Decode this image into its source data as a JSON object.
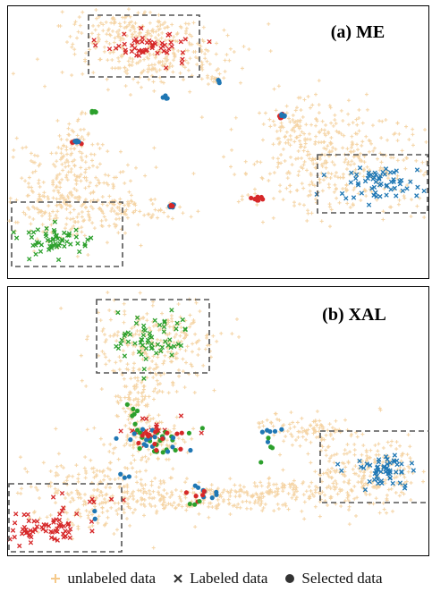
{
  "legend": {
    "unlabeled": "unlabeled data",
    "labeled": "Labeled data",
    "selected": "Selected data"
  },
  "colors": {
    "unlabeled": "#f5d3a3",
    "red": "#d62728",
    "green": "#2ca02c",
    "blue": "#1f77b4",
    "box": "#555555",
    "frame": "#000000"
  },
  "chart_data": [
    {
      "type": "scatter",
      "title": "(a) ME",
      "note": "t-SNE style embedding; axes unlabeled",
      "series": [
        {
          "name": "unlabeled data",
          "marker": "plus",
          "color": "#f5d3a3",
          "clusters": [
            {
              "cx": 0.35,
              "cy": 0.17,
              "sx": 0.1,
              "sy": 0.06,
              "n": 260
            },
            {
              "cx": 0.28,
              "cy": 0.06,
              "sx": 0.08,
              "sy": 0.03,
              "n": 110
            },
            {
              "cx": 0.13,
              "cy": 0.69,
              "sx": 0.09,
              "sy": 0.1,
              "n": 280
            },
            {
              "cx": 0.26,
              "cy": 0.76,
              "sx": 0.08,
              "sy": 0.03,
              "n": 90
            },
            {
              "cx": 0.14,
              "cy": 0.52,
              "sx": 0.025,
              "sy": 0.07,
              "n": 60
            },
            {
              "cx": 0.8,
              "cy": 0.58,
              "sx": 0.12,
              "sy": 0.1,
              "n": 360
            },
            {
              "cx": 0.7,
              "cy": 0.45,
              "sx": 0.05,
              "sy": 0.05,
              "n": 100
            },
            {
              "cx": 0.49,
              "cy": 0.26,
              "sx": 0.012,
              "sy": 0.008,
              "n": 14
            }
          ]
        },
        {
          "name": "Labeled data",
          "marker": "x",
          "clusters": [
            {
              "cx": 0.33,
              "cy": 0.13,
              "sx": 0.05,
              "sy": 0.03,
              "n": 55,
              "color": "#d62728"
            },
            {
              "cx": 0.1,
              "cy": 0.87,
              "sx": 0.04,
              "sy": 0.03,
              "n": 55,
              "color": "#2ca02c"
            },
            {
              "cx": 0.89,
              "cy": 0.66,
              "sx": 0.05,
              "sy": 0.03,
              "n": 60,
              "color": "#1f77b4"
            }
          ]
        },
        {
          "name": "Selected data",
          "marker": "dot",
          "clusters": [
            {
              "cx": 0.155,
              "cy": 0.5,
              "sx": 0.006,
              "sy": 0.005,
              "n": 10,
              "color": "#d62728"
            },
            {
              "cx": 0.155,
              "cy": 0.5,
              "sx": 0.004,
              "sy": 0.004,
              "n": 4,
              "color": "#1f77b4"
            },
            {
              "cx": 0.655,
              "cy": 0.4,
              "sx": 0.007,
              "sy": 0.005,
              "n": 10,
              "color": "#d62728"
            },
            {
              "cx": 0.655,
              "cy": 0.4,
              "sx": 0.005,
              "sy": 0.004,
              "n": 5,
              "color": "#1f77b4"
            },
            {
              "cx": 0.595,
              "cy": 0.72,
              "sx": 0.006,
              "sy": 0.005,
              "n": 8,
              "color": "#d62728"
            },
            {
              "cx": 0.385,
              "cy": 0.74,
              "sx": 0.005,
              "sy": 0.006,
              "n": 6,
              "color": "#1f77b4"
            },
            {
              "cx": 0.385,
              "cy": 0.74,
              "sx": 0.004,
              "sy": 0.005,
              "n": 3,
              "color": "#d62728"
            },
            {
              "cx": 0.19,
              "cy": 0.38,
              "sx": 0.006,
              "sy": 0.005,
              "n": 6,
              "color": "#2ca02c"
            },
            {
              "cx": 0.375,
              "cy": 0.33,
              "sx": 0.004,
              "sy": 0.004,
              "n": 4,
              "color": "#1f77b4"
            },
            {
              "cx": 0.5,
              "cy": 0.27,
              "sx": 0.004,
              "sy": 0.004,
              "n": 3,
              "color": "#1f77b4"
            }
          ]
        }
      ]
    },
    {
      "type": "scatter",
      "title": "(b) XAL",
      "note": "t-SNE style embedding; axes unlabeled",
      "series": [
        {
          "name": "unlabeled data",
          "marker": "plus",
          "color": "#f5d3a3",
          "clusters": [
            {
              "cx": 0.35,
              "cy": 0.2,
              "sx": 0.07,
              "sy": 0.09,
              "n": 260
            },
            {
              "cx": 0.3,
              "cy": 0.4,
              "sx": 0.03,
              "sy": 0.06,
              "n": 80
            },
            {
              "cx": 0.33,
              "cy": 0.57,
              "sx": 0.04,
              "sy": 0.05,
              "n": 120
            },
            {
              "cx": 0.2,
              "cy": 0.77,
              "sx": 0.09,
              "sy": 0.08,
              "n": 230
            },
            {
              "cx": 0.4,
              "cy": 0.8,
              "sx": 0.12,
              "sy": 0.03,
              "n": 170
            },
            {
              "cx": 0.65,
              "cy": 0.78,
              "sx": 0.08,
              "sy": 0.03,
              "n": 120
            },
            {
              "cx": 0.85,
              "cy": 0.7,
              "sx": 0.07,
              "sy": 0.08,
              "n": 260
            },
            {
              "cx": 0.72,
              "cy": 0.53,
              "sx": 0.06,
              "sy": 0.025,
              "n": 90
            }
          ]
        },
        {
          "name": "Labeled data",
          "marker": "x",
          "clusters": [
            {
              "cx": 0.34,
              "cy": 0.17,
              "sx": 0.05,
              "sy": 0.05,
              "n": 60,
              "color": "#2ca02c"
            },
            {
              "cx": 0.08,
              "cy": 0.91,
              "sx": 0.05,
              "sy": 0.035,
              "n": 65,
              "color": "#d62728"
            },
            {
              "cx": 0.9,
              "cy": 0.7,
              "sx": 0.04,
              "sy": 0.03,
              "n": 55,
              "color": "#1f77b4"
            },
            {
              "cx": 0.34,
              "cy": 0.53,
              "sx": 0.04,
              "sy": 0.025,
              "n": 18,
              "color": "#d62728"
            },
            {
              "cx": 0.14,
              "cy": 0.81,
              "sx": 0.05,
              "sy": 0.015,
              "n": 8,
              "color": "#d62728"
            }
          ]
        },
        {
          "name": "Selected data",
          "marker": "dot",
          "clusters": [
            {
              "cx": 0.35,
              "cy": 0.57,
              "sx": 0.035,
              "sy": 0.025,
              "n": 24,
              "color": "#2ca02c"
            },
            {
              "cx": 0.35,
              "cy": 0.57,
              "sx": 0.035,
              "sy": 0.02,
              "n": 16,
              "color": "#1f77b4"
            },
            {
              "cx": 0.35,
              "cy": 0.56,
              "sx": 0.03,
              "sy": 0.025,
              "n": 14,
              "color": "#d62728"
            },
            {
              "cx": 0.3,
              "cy": 0.47,
              "sx": 0.01,
              "sy": 0.02,
              "n": 5,
              "color": "#2ca02c"
            },
            {
              "cx": 0.62,
              "cy": 0.55,
              "sx": 0.015,
              "sy": 0.04,
              "n": 6,
              "color": "#1f77b4"
            },
            {
              "cx": 0.62,
              "cy": 0.6,
              "sx": 0.01,
              "sy": 0.03,
              "n": 4,
              "color": "#2ca02c"
            },
            {
              "cx": 0.48,
              "cy": 0.77,
              "sx": 0.02,
              "sy": 0.015,
              "n": 8,
              "color": "#1f77b4"
            },
            {
              "cx": 0.45,
              "cy": 0.79,
              "sx": 0.02,
              "sy": 0.015,
              "n": 5,
              "color": "#d62728"
            },
            {
              "cx": 0.45,
              "cy": 0.82,
              "sx": 0.015,
              "sy": 0.01,
              "n": 3,
              "color": "#2ca02c"
            },
            {
              "cx": 0.26,
              "cy": 0.7,
              "sx": 0.01,
              "sy": 0.01,
              "n": 3,
              "color": "#1f77b4"
            },
            {
              "cx": 0.2,
              "cy": 0.87,
              "sx": 0.01,
              "sy": 0.01,
              "n": 2,
              "color": "#1f77b4"
            }
          ]
        }
      ]
    }
  ]
}
